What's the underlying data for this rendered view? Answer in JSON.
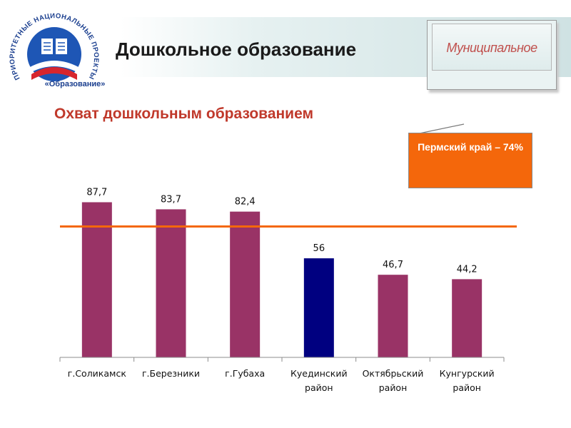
{
  "header": {
    "title": "Дошкольное образование",
    "level": "Муниципальное"
  },
  "logo": {
    "arc_text": "ПРИОРИТЕТНЫЕ НАЦИОНАЛЬНЫЕ ПРОЕКТЫ",
    "caption": "«Образование»"
  },
  "colors": {
    "bar": "#993366",
    "highlight_bar": "#000080",
    "reference_line": "#f4670b",
    "callout_bg": "#f4670b",
    "subtitle": "#c0392b"
  },
  "callout": {
    "text": "Пермский край – 74%"
  },
  "chart_data": {
    "type": "bar",
    "title": "Охват дошкольным образованием",
    "categories": [
      [
        "г.Соликамск"
      ],
      [
        "г.Березники"
      ],
      [
        "г.Губаха"
      ],
      [
        "Куединский",
        "район"
      ],
      [
        "Октябрьский",
        "район"
      ],
      [
        "Кунгурский",
        "район"
      ]
    ],
    "values": [
      87.7,
      83.7,
      82.4,
      56,
      46.7,
      44.2
    ],
    "value_labels": [
      "87,7",
      "83,7",
      "82,4",
      "56",
      "46,7",
      "44,2"
    ],
    "highlight_index": 3,
    "reference_line": {
      "value": 74
    },
    "ylim": [
      0,
      100
    ],
    "grid": false,
    "legend": "none"
  }
}
